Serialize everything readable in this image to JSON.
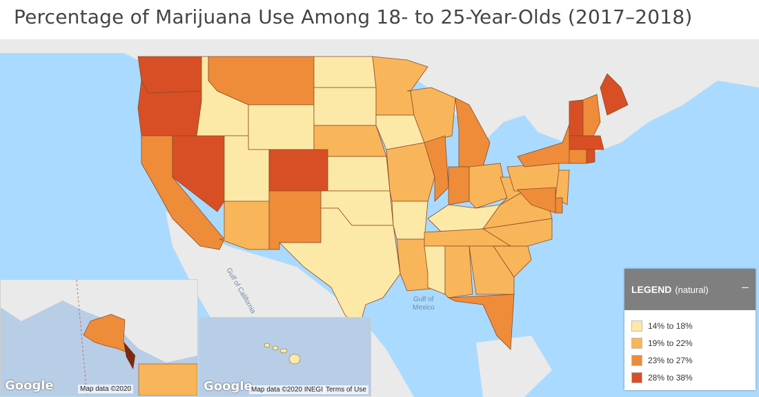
{
  "title": "Percentage of Marijuana Use Among 18- to 25-Year-Olds (2017–2018)",
  "colors": {
    "c1": "#fde9a7",
    "c2": "#f9b55a",
    "c3": "#ef8c3a",
    "c4": "#d94f25",
    "land": "#eaeaea",
    "water": "#aadaff"
  },
  "legend": {
    "title": "LEGEND",
    "subtitle": "(natural)",
    "minimize": "–",
    "items": [
      {
        "label": "14% to 18%",
        "color": "#fde9a7"
      },
      {
        "label": "19% to 22%",
        "color": "#f9b55a"
      },
      {
        "label": "23% to 27%",
        "color": "#ef8c3a"
      },
      {
        "label": "28% to 38%",
        "color": "#d94f25"
      }
    ]
  },
  "water_labels": {
    "gulf_mexico_1": "Gulf of",
    "gulf_mexico_2": "Mexico",
    "gulf_california": "Gulf of California"
  },
  "states": {
    "WA": 4,
    "OR": 4,
    "CA": 3,
    "NV": 4,
    "ID": 1,
    "MT": 3,
    "WY": 1,
    "UT": 1,
    "AZ": 2,
    "CO": 4,
    "NM": 3,
    "ND": 1,
    "SD": 1,
    "NE": 2,
    "KS": 1,
    "OK": 1,
    "TX": 1,
    "MN": 2,
    "IA": 1,
    "MO": 2,
    "AR": 1,
    "LA": 2,
    "WI": 2,
    "IL": 3,
    "MI": 3,
    "IN": 3,
    "OH": 2,
    "KY": 1,
    "TN": 2,
    "MS": 1,
    "AL": 2,
    "GA": 2,
    "FL": 3,
    "SC": 2,
    "NC": 2,
    "VA": 2,
    "WV": 2,
    "PA": 2,
    "NY": 3,
    "ME": 4,
    "VT": 4,
    "NH": 3,
    "MA": 4,
    "MD": 3,
    "NJ": 2,
    "DE": 3,
    "CT": 3,
    "RI": 4,
    "AK": 3,
    "HI": 1
  },
  "insets": {
    "left": {
      "logo": "Google",
      "attribution": "Map data ©2020"
    },
    "right": {
      "logo": "Google",
      "attribution": "Map data ©2020 INEGI",
      "terms": "Terms of Use"
    }
  }
}
